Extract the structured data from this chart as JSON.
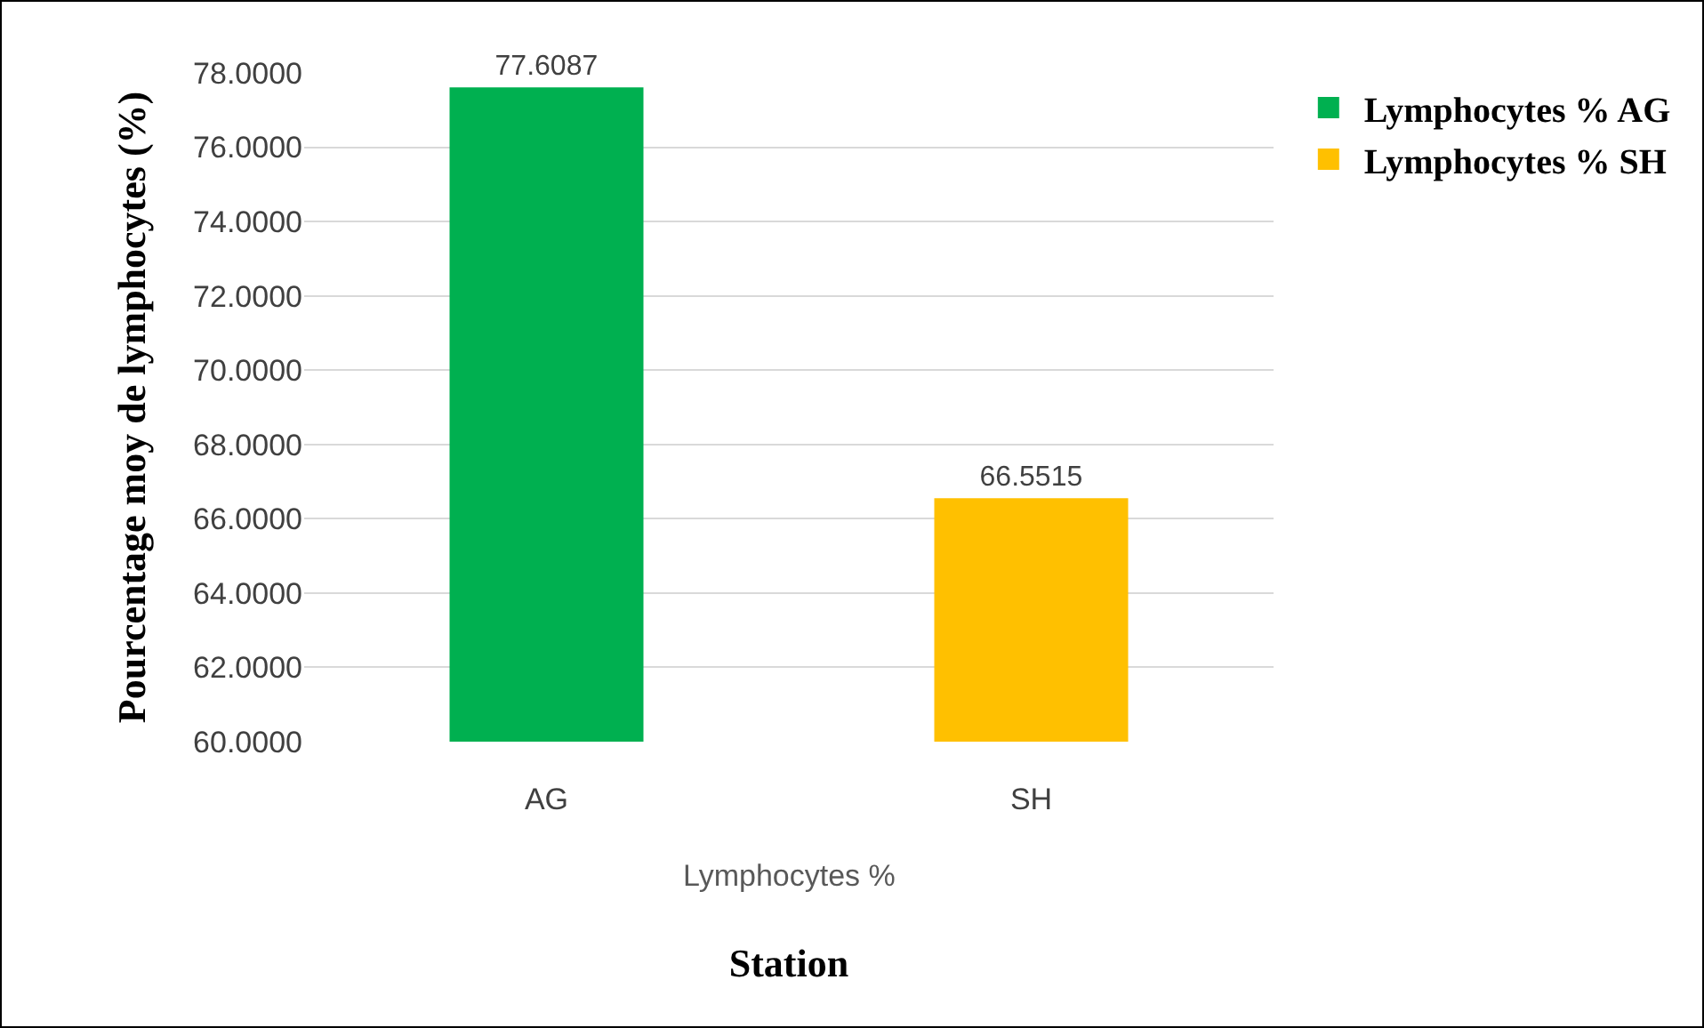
{
  "chart_data": {
    "type": "bar",
    "xlabel": "Station",
    "ylabel": "Pourcentage moy de lymphocytes (%)",
    "categories": [
      "AG",
      "SH"
    ],
    "series": [
      {
        "name": "Lymphocytes % AG",
        "color": "#00b050",
        "values": [
          77.6087,
          null
        ]
      },
      {
        "name": "Lymphocytes % SH",
        "color": "#ffc000",
        "values": [
          null,
          66.5515
        ]
      }
    ],
    "ylim": [
      60,
      78
    ],
    "yticks": [
      {
        "value": 60,
        "label": "60.0000"
      },
      {
        "value": 62,
        "label": "62.0000"
      },
      {
        "value": 64,
        "label": "64.0000"
      },
      {
        "value": 66,
        "label": "66.0000"
      },
      {
        "value": 68,
        "label": "68.0000"
      },
      {
        "value": 70,
        "label": "70.0000"
      },
      {
        "value": 72,
        "label": "72.0000"
      },
      {
        "value": 74,
        "label": "74.0000"
      },
      {
        "value": 76,
        "label": "76.0000"
      },
      {
        "value": 78,
        "label": "78.0000"
      }
    ],
    "grid": "y",
    "legend": "top right",
    "data_labels": true,
    "annotations": [
      "Lymphocytes %"
    ]
  }
}
